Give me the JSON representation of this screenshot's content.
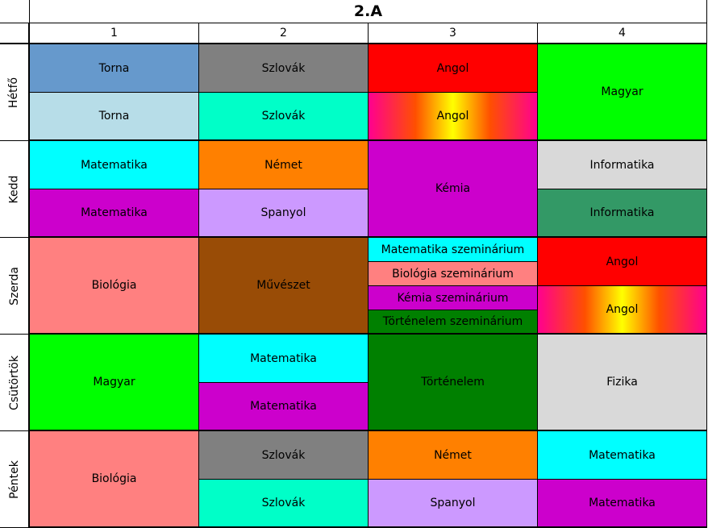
{
  "title": "2.A",
  "columns": [
    "1",
    "2",
    "3",
    "4"
  ],
  "days": [
    {
      "name": "Hétfő",
      "lessons": [
        "Torna",
        "Torna",
        "Szlovák",
        "Szlovák",
        "Angol",
        "Angol",
        "Magyar"
      ]
    },
    {
      "name": "Kedd",
      "lessons": [
        "Matematika",
        "Matematika",
        "Német",
        "Spanyol",
        "Kémia",
        "Informatika",
        "Informatika"
      ]
    },
    {
      "name": "Szerda",
      "lessons": [
        "Biológia",
        "Művészet",
        "Matematika szeminárium",
        "Biológia szeminárium",
        "Kémia szeminárium",
        "Történelem szeminárium",
        "Angol",
        "Angol"
      ]
    },
    {
      "name": "Csütörtök",
      "lessons": [
        "Magyar",
        "Matematika",
        "Matematika",
        "Történelem",
        "Fizika"
      ]
    },
    {
      "name": "Péntek",
      "lessons": [
        "Biológia",
        "Szlovák",
        "Szlovák",
        "Német",
        "Spanyol",
        "Matematika",
        "Matematika"
      ]
    }
  ]
}
